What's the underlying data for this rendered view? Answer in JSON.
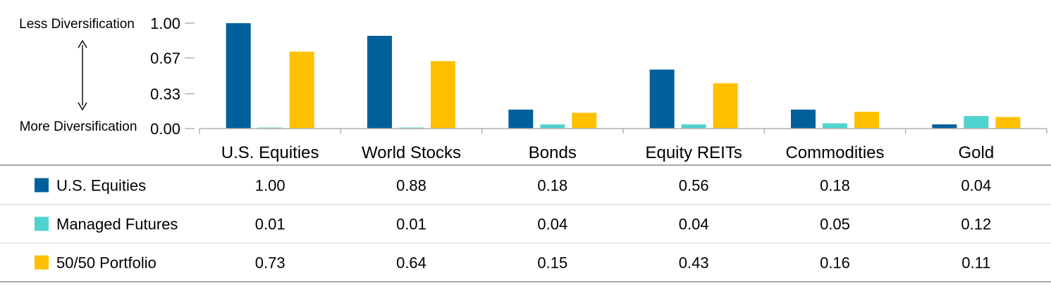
{
  "chart_data": {
    "type": "bar",
    "categories": [
      "U.S. Equities",
      "World Stocks",
      "Bonds",
      "Equity REITs",
      "Commodities",
      "Gold"
    ],
    "series": [
      {
        "name": "U.S. Equities",
        "color": "#00609C",
        "values": [
          1.0,
          0.88,
          0.18,
          0.56,
          0.18,
          0.04
        ]
      },
      {
        "name": "Managed Futures",
        "color": "#4FD3CF",
        "values": [
          0.01,
          0.01,
          0.04,
          0.04,
          0.05,
          0.12
        ]
      },
      {
        "name": "50/50 Portfolio",
        "color": "#FFC000",
        "values": [
          0.73,
          0.64,
          0.15,
          0.43,
          0.16,
          0.11
        ]
      }
    ],
    "value_labels": [
      [
        "1.00",
        "0.88",
        "0.18",
        "0.56",
        "0.18",
        "0.04"
      ],
      [
        "0.01",
        "0.01",
        "0.04",
        "0.04",
        "0.05",
        "0.12"
      ],
      [
        "0.73",
        "0.64",
        "0.15",
        "0.43",
        "0.16",
        "0.11"
      ]
    ],
    "yticks": [
      "0.00",
      "0.33",
      "0.67",
      "1.00"
    ],
    "ytick_values": [
      0,
      0.33,
      0.67,
      1.0
    ],
    "ylim": [
      0,
      1.0
    ],
    "annotations": {
      "top": "Less Diversification",
      "bottom": "More Diversification"
    },
    "legend_placement": "data-table-below",
    "grid": false
  }
}
